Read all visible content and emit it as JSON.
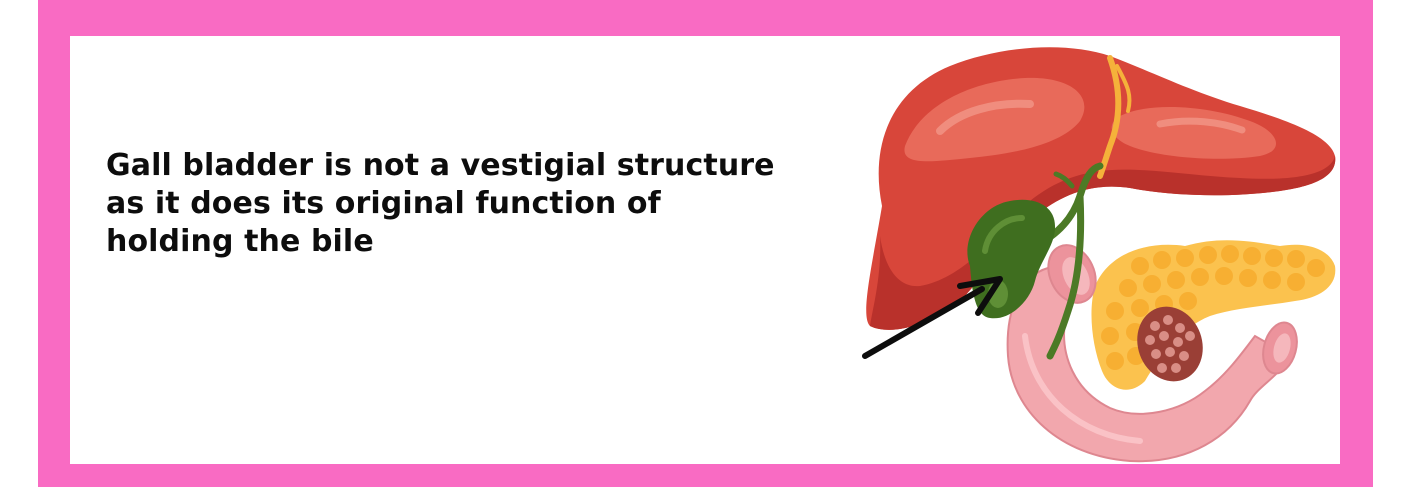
{
  "caption": {
    "line1": "Gall bladder is not a vestigial structure",
    "line2": "as it does its original function of",
    "line3": "holding the bile"
  },
  "colors": {
    "border": "#f96bc3",
    "background": "#ffffff",
    "text": "#0d0d0d",
    "liver": "#d8463a",
    "liver_highlight": "#e86a5a",
    "liver_shadow": "#b9312b",
    "gallbladder": "#3f6e1f",
    "bile_duct": "#4c7a26",
    "pancreas": "#fbc24e",
    "duodenum": "#f2a7ad",
    "arrow": "#0d0d0d"
  },
  "illustration": {
    "subject": "liver-gallbladder-pancreas-illustration",
    "pointer": "arrow-icon"
  }
}
